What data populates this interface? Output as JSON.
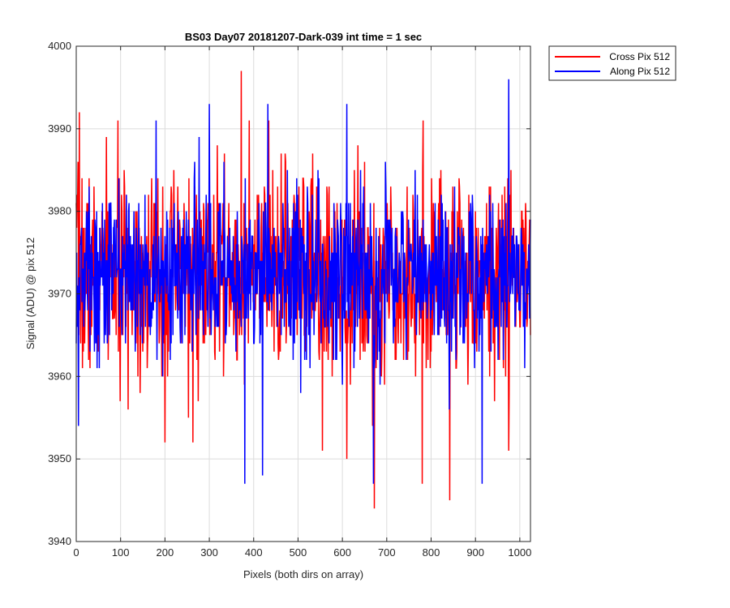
{
  "chart_data": {
    "type": "line",
    "title": "BS03 Day07 20181207-Dark-039 int time = 1 sec",
    "xlabel": "Pixels (both dirs on array)",
    "ylabel": "Signal (ADU) @ pix 512",
    "xlim": [
      0,
      1024
    ],
    "ylim": [
      3940,
      4000
    ],
    "xticks": [
      0,
      100,
      200,
      300,
      400,
      500,
      600,
      700,
      800,
      900,
      1000
    ],
    "yticks": [
      3940,
      3950,
      3960,
      3970,
      3980,
      3990,
      4000
    ],
    "grid": true,
    "legend_position": "outside-top-right",
    "series": [
      {
        "name": "Cross Pix 512",
        "color": "#ff0000",
        "noise": {
          "mean": 3972.5,
          "std": 6,
          "min": 3944,
          "max": 3997,
          "seed": 7
        },
        "peaks": [
          [
            7,
            3992
          ],
          [
            200,
            3952
          ],
          [
            263,
            3952
          ],
          [
            372,
            3997
          ],
          [
            555,
            3951
          ],
          [
            610,
            3950
          ],
          [
            672,
            3944
          ],
          [
            780,
            3947
          ],
          [
            842,
            3945
          ],
          [
            975,
            3951
          ]
        ]
      },
      {
        "name": "Along Pix 512",
        "color": "#0000ff",
        "noise": {
          "mean": 3972.5,
          "std": 5,
          "min": 3947,
          "max": 3996,
          "seed": 13
        },
        "peaks": [
          [
            5,
            3954
          ],
          [
            180,
            3991
          ],
          [
            300,
            3993
          ],
          [
            380,
            3947
          ],
          [
            420,
            3948
          ],
          [
            432,
            3993
          ],
          [
            610,
            3993
          ],
          [
            670,
            3947
          ],
          [
            915,
            3947
          ],
          [
            975,
            3996
          ]
        ]
      }
    ]
  }
}
